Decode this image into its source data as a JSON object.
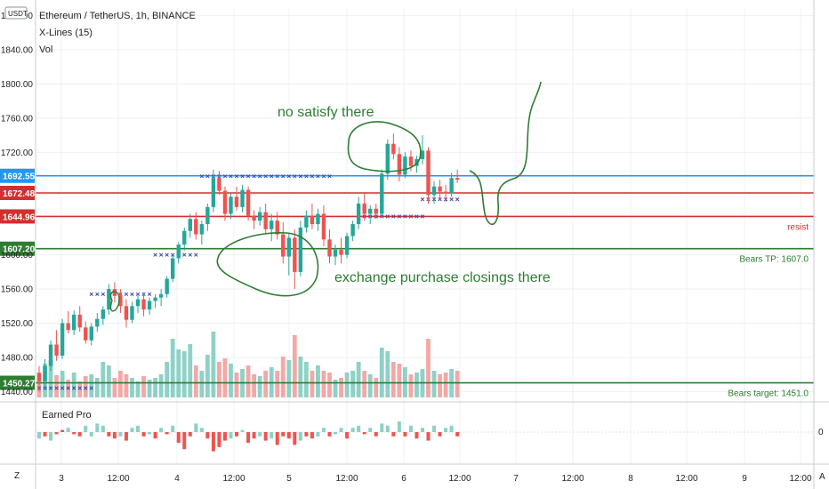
{
  "header": {
    "symbol_title": "Ethereum / TetherUS, 1h, BINANCE",
    "indicator_1": "X-Lines (15)",
    "indicator_2": "Vol",
    "currency_badge": "USDT",
    "subpane_title": "Earned Pro",
    "subpane_zero": "0",
    "zoom_icon": "Z",
    "auto_icon": "A"
  },
  "annotations": {
    "top_note": "no satisfy there",
    "bottom_note": "exchange purchase closings there"
  },
  "levels": [
    {
      "price": 1692.55,
      "label": "1692.55",
      "color": "#2196f3",
      "caption": ""
    },
    {
      "price": 1672.48,
      "label": "1672.48",
      "color": "#d32f2f",
      "caption": ""
    },
    {
      "price": 1644.96,
      "label": "1644.96",
      "color": "#d32f2f",
      "caption": "resist"
    },
    {
      "price": 1607.2,
      "label": "1607.20",
      "color": "#2e7d32",
      "caption": "Bears TP: 1607.0"
    },
    {
      "price": 1450.27,
      "label": "1450.27",
      "color": "#2e7d32",
      "caption": "Bears target: 1451.0"
    }
  ],
  "colors": {
    "up": "#26a69a",
    "down": "#ef5350",
    "vol_up": "#8ed1c7",
    "vol_down": "#f4a8a6",
    "xline": "#3949ab",
    "grid": "#eef0f3",
    "drawing": "#2e7d32"
  },
  "chart_data": {
    "type": "candlestick",
    "title": "Ethereum / TetherUS, 1h, BINANCE",
    "ylim": [
      1430,
      1890
    ],
    "y_ticks": [
      1880,
      1840,
      1800,
      1760,
      1720,
      1600,
      1560,
      1520,
      1480,
      1440
    ],
    "x_ticks": [
      "3",
      "12:00",
      "4",
      "12:00",
      "5",
      "12:00",
      "6",
      "12:00",
      "7",
      "12:00",
      "8",
      "12:00",
      "9",
      "12:00"
    ],
    "candles": [
      [
        1462,
        1470,
        1440,
        1452
      ],
      [
        1452,
        1478,
        1446,
        1470
      ],
      [
        1470,
        1500,
        1464,
        1495
      ],
      [
        1495,
        1512,
        1476,
        1482
      ],
      [
        1482,
        1525,
        1478,
        1520
      ],
      [
        1520,
        1534,
        1508,
        1512
      ],
      [
        1512,
        1535,
        1506,
        1530
      ],
      [
        1530,
        1540,
        1510,
        1515
      ],
      [
        1515,
        1522,
        1496,
        1500
      ],
      [
        1500,
        1520,
        1494,
        1516
      ],
      [
        1516,
        1532,
        1510,
        1525
      ],
      [
        1525,
        1540,
        1518,
        1536
      ],
      [
        1536,
        1566,
        1530,
        1560
      ],
      [
        1560,
        1568,
        1544,
        1552
      ],
      [
        1552,
        1560,
        1532,
        1540
      ],
      [
        1540,
        1548,
        1515,
        1524
      ],
      [
        1524,
        1545,
        1520,
        1540
      ],
      [
        1540,
        1552,
        1532,
        1548
      ],
      [
        1548,
        1556,
        1528,
        1536
      ],
      [
        1536,
        1550,
        1530,
        1546
      ],
      [
        1546,
        1554,
        1538,
        1550
      ],
      [
        1550,
        1560,
        1540,
        1554
      ],
      [
        1554,
        1575,
        1550,
        1572
      ],
      [
        1572,
        1600,
        1568,
        1596
      ],
      [
        1596,
        1615,
        1590,
        1612
      ],
      [
        1612,
        1632,
        1605,
        1628
      ],
      [
        1628,
        1648,
        1620,
        1642
      ],
      [
        1642,
        1650,
        1618,
        1624
      ],
      [
        1624,
        1640,
        1612,
        1636
      ],
      [
        1636,
        1660,
        1628,
        1656
      ],
      [
        1656,
        1700,
        1650,
        1690
      ],
      [
        1690,
        1698,
        1670,
        1675
      ],
      [
        1675,
        1680,
        1640,
        1648
      ],
      [
        1648,
        1672,
        1642,
        1668
      ],
      [
        1668,
        1680,
        1652,
        1656
      ],
      [
        1656,
        1682,
        1650,
        1676
      ],
      [
        1676,
        1680,
        1640,
        1646
      ],
      [
        1646,
        1652,
        1630,
        1640
      ],
      [
        1640,
        1656,
        1634,
        1650
      ],
      [
        1650,
        1660,
        1624,
        1630
      ],
      [
        1630,
        1648,
        1616,
        1640
      ],
      [
        1640,
        1650,
        1618,
        1624
      ],
      [
        1624,
        1638,
        1590,
        1598
      ],
      [
        1598,
        1625,
        1576,
        1620
      ],
      [
        1620,
        1630,
        1560,
        1580
      ],
      [
        1580,
        1640,
        1575,
        1632
      ],
      [
        1632,
        1652,
        1626,
        1646
      ],
      [
        1646,
        1660,
        1630,
        1636
      ],
      [
        1636,
        1654,
        1628,
        1648
      ],
      [
        1648,
        1658,
        1610,
        1618
      ],
      [
        1618,
        1630,
        1590,
        1598
      ],
      [
        1598,
        1612,
        1588,
        1606
      ],
      [
        1606,
        1620,
        1590,
        1600
      ],
      [
        1600,
        1626,
        1596,
        1622
      ],
      [
        1622,
        1640,
        1616,
        1636
      ],
      [
        1636,
        1668,
        1630,
        1660
      ],
      [
        1660,
        1672,
        1640,
        1648
      ],
      [
        1648,
        1658,
        1636,
        1654
      ],
      [
        1654,
        1660,
        1642,
        1648
      ],
      [
        1648,
        1700,
        1644,
        1695
      ],
      [
        1695,
        1735,
        1688,
        1730
      ],
      [
        1730,
        1742,
        1712,
        1718
      ],
      [
        1718,
        1726,
        1686,
        1694
      ],
      [
        1694,
        1720,
        1690,
        1715
      ],
      [
        1715,
        1722,
        1698,
        1704
      ],
      [
        1704,
        1716,
        1696,
        1712
      ],
      [
        1712,
        1740,
        1706,
        1722
      ],
      [
        1722,
        1726,
        1660,
        1670
      ],
      [
        1670,
        1686,
        1660,
        1680
      ],
      [
        1680,
        1688,
        1665,
        1674
      ],
      [
        1674,
        1682,
        1662,
        1672
      ],
      [
        1672,
        1696,
        1668,
        1690
      ],
      [
        1690,
        1700,
        1684,
        1688
      ]
    ],
    "volumes": [
      [
        20,
        0
      ],
      [
        38,
        1
      ],
      [
        42,
        1
      ],
      [
        25,
        0
      ],
      [
        30,
        1
      ],
      [
        20,
        0
      ],
      [
        28,
        1
      ],
      [
        18,
        0
      ],
      [
        24,
        0
      ],
      [
        26,
        1
      ],
      [
        22,
        1
      ],
      [
        40,
        1
      ],
      [
        36,
        1
      ],
      [
        22,
        0
      ],
      [
        30,
        0
      ],
      [
        26,
        0
      ],
      [
        22,
        1
      ],
      [
        18,
        1
      ],
      [
        24,
        0
      ],
      [
        20,
        1
      ],
      [
        22,
        1
      ],
      [
        26,
        1
      ],
      [
        40,
        1
      ],
      [
        66,
        1
      ],
      [
        54,
        1
      ],
      [
        52,
        1
      ],
      [
        60,
        1
      ],
      [
        36,
        0
      ],
      [
        30,
        1
      ],
      [
        48,
        1
      ],
      [
        74,
        1
      ],
      [
        40,
        0
      ],
      [
        44,
        0
      ],
      [
        38,
        1
      ],
      [
        28,
        0
      ],
      [
        32,
        1
      ],
      [
        36,
        0
      ],
      [
        26,
        0
      ],
      [
        24,
        1
      ],
      [
        30,
        0
      ],
      [
        34,
        1
      ],
      [
        30,
        0
      ],
      [
        46,
        0
      ],
      [
        42,
        1
      ],
      [
        70,
        0
      ],
      [
        46,
        1
      ],
      [
        40,
        1
      ],
      [
        30,
        0
      ],
      [
        36,
        1
      ],
      [
        30,
        0
      ],
      [
        28,
        0
      ],
      [
        20,
        1
      ],
      [
        22,
        0
      ],
      [
        28,
        1
      ],
      [
        30,
        1
      ],
      [
        40,
        1
      ],
      [
        30,
        0
      ],
      [
        26,
        1
      ],
      [
        22,
        0
      ],
      [
        56,
        1
      ],
      [
        52,
        1
      ],
      [
        40,
        0
      ],
      [
        38,
        0
      ],
      [
        34,
        1
      ],
      [
        26,
        0
      ],
      [
        28,
        1
      ],
      [
        32,
        1
      ],
      [
        66,
        0
      ],
      [
        30,
        1
      ],
      [
        26,
        0
      ],
      [
        28,
        0
      ],
      [
        32,
        1
      ],
      [
        30,
        0
      ]
    ],
    "earned_pro": [
      [
        -3,
        1
      ],
      [
        -2,
        0
      ],
      [
        -4,
        1
      ],
      [
        -1,
        0
      ],
      [
        1,
        0
      ],
      [
        2,
        1
      ],
      [
        -1,
        0
      ],
      [
        -2,
        0
      ],
      [
        3,
        1
      ],
      [
        -2,
        1
      ],
      [
        4,
        1
      ],
      [
        3,
        1
      ],
      [
        -2,
        0
      ],
      [
        -3,
        0
      ],
      [
        -2,
        1
      ],
      [
        -4,
        0
      ],
      [
        2,
        1
      ],
      [
        3,
        1
      ],
      [
        -2,
        0
      ],
      [
        -1,
        1
      ],
      [
        -3,
        0
      ],
      [
        2,
        1
      ],
      [
        -1,
        0
      ],
      [
        3,
        1
      ],
      [
        -5,
        0
      ],
      [
        -8,
        0
      ],
      [
        -2,
        0
      ],
      [
        4,
        1
      ],
      [
        2,
        1
      ],
      [
        -3,
        0
      ],
      [
        -9,
        0
      ],
      [
        -7,
        0
      ],
      [
        -4,
        0
      ],
      [
        -3,
        1
      ],
      [
        -2,
        0
      ],
      [
        1,
        1
      ],
      [
        -5,
        0
      ],
      [
        -3,
        0
      ],
      [
        -2,
        1
      ],
      [
        -4,
        0
      ],
      [
        -3,
        1
      ],
      [
        -6,
        0
      ],
      [
        -2,
        0
      ],
      [
        -3,
        0
      ],
      [
        -6,
        0
      ],
      [
        -4,
        1
      ],
      [
        -2,
        0
      ],
      [
        -3,
        0
      ],
      [
        -2,
        1
      ],
      [
        2,
        1
      ],
      [
        -2,
        0
      ],
      [
        -1,
        1
      ],
      [
        2,
        1
      ],
      [
        -3,
        0
      ],
      [
        2,
        1
      ],
      [
        3,
        1
      ],
      [
        -1,
        0
      ],
      [
        2,
        1
      ],
      [
        -2,
        0
      ],
      [
        4,
        1
      ],
      [
        3,
        1
      ],
      [
        -2,
        0
      ],
      [
        5,
        1
      ],
      [
        -2,
        0
      ],
      [
        3,
        1
      ],
      [
        -3,
        0
      ],
      [
        2,
        1
      ],
      [
        -4,
        0
      ],
      [
        3,
        1
      ],
      [
        -2,
        0
      ],
      [
        2,
        1
      ],
      [
        3,
        1
      ],
      [
        -2,
        0
      ]
    ]
  }
}
